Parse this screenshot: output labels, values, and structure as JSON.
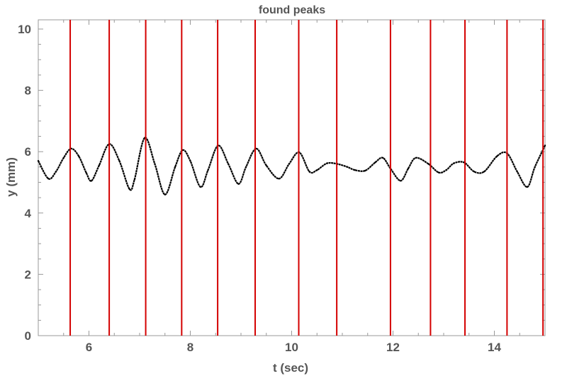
{
  "chart_data": {
    "type": "line",
    "title": "found peaks",
    "xlabel": "t (sec)",
    "ylabel": "y (mm)",
    "xlim": [
      5,
      15
    ],
    "ylim": [
      0,
      10.3
    ],
    "xticks": [
      6,
      8,
      10,
      12,
      14
    ],
    "yticks": [
      0,
      2,
      4,
      6,
      8,
      10
    ],
    "grid": false,
    "series": [
      {
        "color": "#000000",
        "x": [
          5.0,
          5.2,
          5.35,
          5.5,
          5.65,
          5.8,
          5.95,
          6.05,
          6.2,
          6.4,
          6.6,
          6.8,
          6.9,
          7.1,
          7.3,
          7.5,
          7.7,
          7.85,
          8.0,
          8.2,
          8.35,
          8.55,
          8.75,
          8.95,
          9.1,
          9.3,
          9.5,
          9.75,
          9.95,
          10.15,
          10.35,
          10.5,
          10.7,
          10.9,
          11.1,
          11.25,
          11.45,
          11.65,
          11.8,
          11.95,
          12.15,
          12.3,
          12.45,
          12.7,
          12.9,
          13.05,
          13.2,
          13.4,
          13.6,
          13.8,
          14.05,
          14.25,
          14.45,
          14.65,
          14.8,
          15.0
        ],
        "values": [
          5.7,
          5.12,
          5.35,
          5.8,
          6.1,
          5.85,
          5.3,
          5.05,
          5.55,
          6.25,
          5.7,
          4.78,
          5.1,
          6.45,
          5.6,
          4.6,
          5.5,
          6.05,
          5.7,
          4.85,
          5.4,
          6.2,
          5.6,
          4.95,
          5.5,
          6.1,
          5.55,
          5.12,
          5.6,
          5.98,
          5.35,
          5.4,
          5.62,
          5.6,
          5.5,
          5.4,
          5.38,
          5.65,
          5.8,
          5.45,
          5.05,
          5.45,
          5.8,
          5.6,
          5.32,
          5.4,
          5.62,
          5.65,
          5.35,
          5.35,
          5.85,
          5.95,
          5.35,
          4.85,
          5.5,
          6.2
        ]
      }
    ],
    "peaks": {
      "color": "#d40000",
      "x": [
        5.63,
        6.4,
        7.12,
        7.83,
        8.54,
        9.28,
        10.14,
        10.89,
        11.95,
        12.74,
        13.42,
        14.25,
        14.96
      ]
    }
  }
}
